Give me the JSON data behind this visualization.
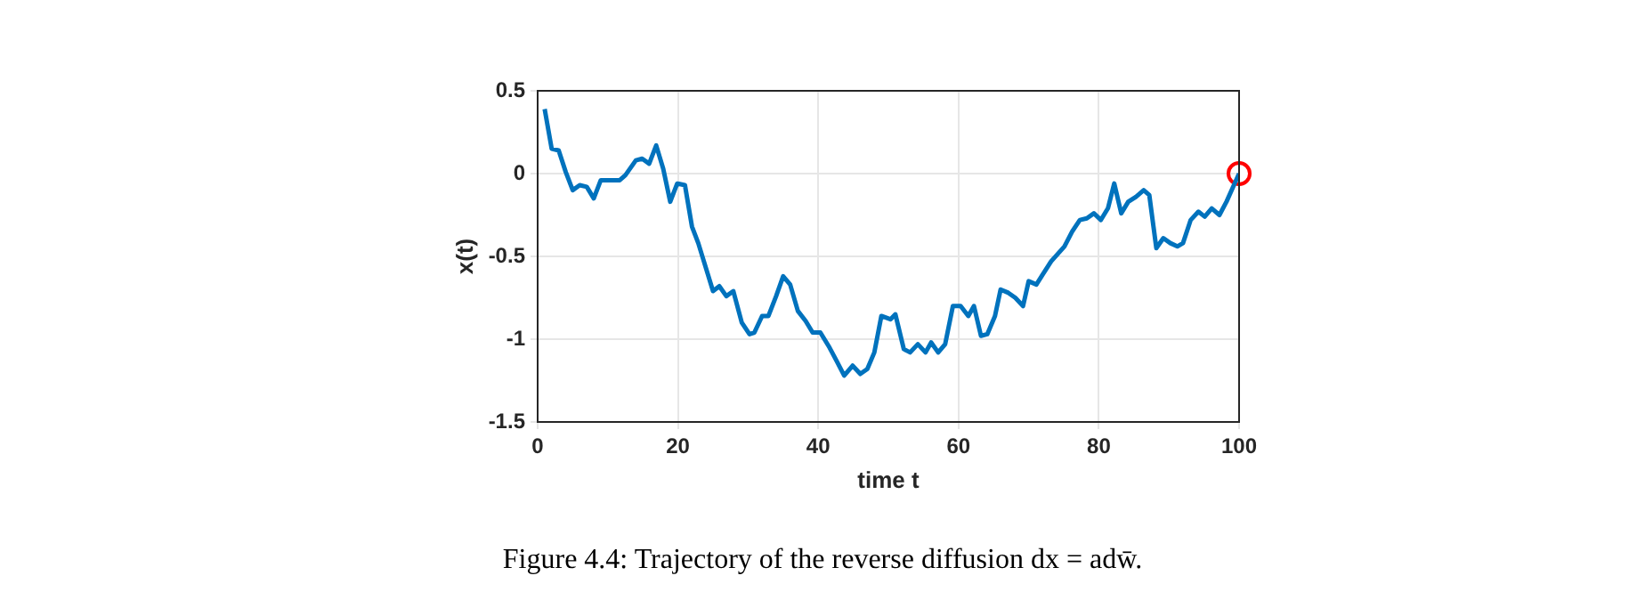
{
  "chart_data": {
    "type": "line",
    "xlabel": "time t",
    "ylabel": "x(t)",
    "x": [
      1,
      2,
      3,
      4,
      5,
      6,
      7,
      8,
      9,
      11.7,
      12.5,
      14,
      14.9,
      15.9,
      16.9,
      17.9,
      18.9,
      19.9,
      21,
      22,
      22.9,
      25,
      25.9,
      26.9,
      27.9,
      29.1,
      30.2,
      30.9,
      32,
      32.9,
      34,
      35,
      36,
      37.1,
      38.2,
      39.2,
      40.3,
      41.6,
      42.6,
      43.7,
      44.9,
      46,
      47,
      48,
      49,
      50.3,
      51,
      52.2,
      53.1,
      54.2,
      55.3,
      56.1,
      57.1,
      58.1,
      59.2,
      60.3,
      61.4,
      62.2,
      63.2,
      64.1,
      65.2,
      66,
      67.1,
      68.1,
      69.2,
      70,
      71.1,
      72,
      73.2,
      75.1,
      76.2,
      77.3,
      78.3,
      79.3,
      80.3,
      81.3,
      82.2,
      83.2,
      84.2,
      85.3,
      86.4,
      87.2,
      88.2,
      89.2,
      90.2,
      91.2,
      92,
      93.1,
      94.2,
      95.1,
      96.1,
      97.2,
      98.2,
      100
    ],
    "series": [
      {
        "color": "#0072bd",
        "marker": "none",
        "values": [
          0.39,
          0.15,
          0.14,
          0.01,
          -0.1,
          -0.07,
          -0.08,
          -0.15,
          -0.04,
          -0.04,
          -0.01,
          0.08,
          0.09,
          0.06,
          0.17,
          0.03,
          -0.17,
          -0.06,
          -0.07,
          -0.32,
          -0.42,
          -0.71,
          -0.68,
          -0.74,
          -0.71,
          -0.9,
          -0.97,
          -0.96,
          -0.86,
          -0.86,
          -0.74,
          -0.62,
          -0.67,
          -0.83,
          -0.89,
          -0.96,
          -0.96,
          -1.05,
          -1.13,
          -1.22,
          -1.16,
          -1.21,
          -1.18,
          -1.08,
          -0.86,
          -0.88,
          -0.85,
          -1.06,
          -1.08,
          -1.03,
          -1.08,
          -1.02,
          -1.08,
          -1.03,
          -0.8,
          -0.8,
          -0.86,
          -0.8,
          -0.98,
          -0.97,
          -0.86,
          -0.7,
          -0.72,
          -0.75,
          -0.8,
          -0.65,
          -0.67,
          -0.61,
          -0.53,
          -0.44,
          -0.35,
          -0.28,
          -0.27,
          -0.24,
          -0.28,
          -0.21,
          -0.06,
          -0.24,
          -0.17,
          -0.14,
          -0.1,
          -0.13,
          -0.45,
          -0.39,
          -0.42,
          -0.44,
          -0.42,
          -0.28,
          -0.23,
          -0.26,
          -0.21,
          -0.25,
          -0.17,
          0
        ]
      },
      {
        "type": "scatter",
        "color": "#ff0000",
        "marker": "circle",
        "x": [
          100
        ],
        "values": [
          0
        ]
      }
    ],
    "xlim": [
      0,
      100
    ],
    "xticks": [
      0,
      20,
      40,
      60,
      80,
      100
    ],
    "ylim": [
      -1.5,
      0.5
    ],
    "yticks": [
      -1.5,
      -1,
      -0.5,
      0,
      0.5
    ],
    "grid": true,
    "legend": false,
    "annotations": [
      "Figure 4.4: Trajectory of the reverse diffusion dx = adw̄."
    ]
  }
}
